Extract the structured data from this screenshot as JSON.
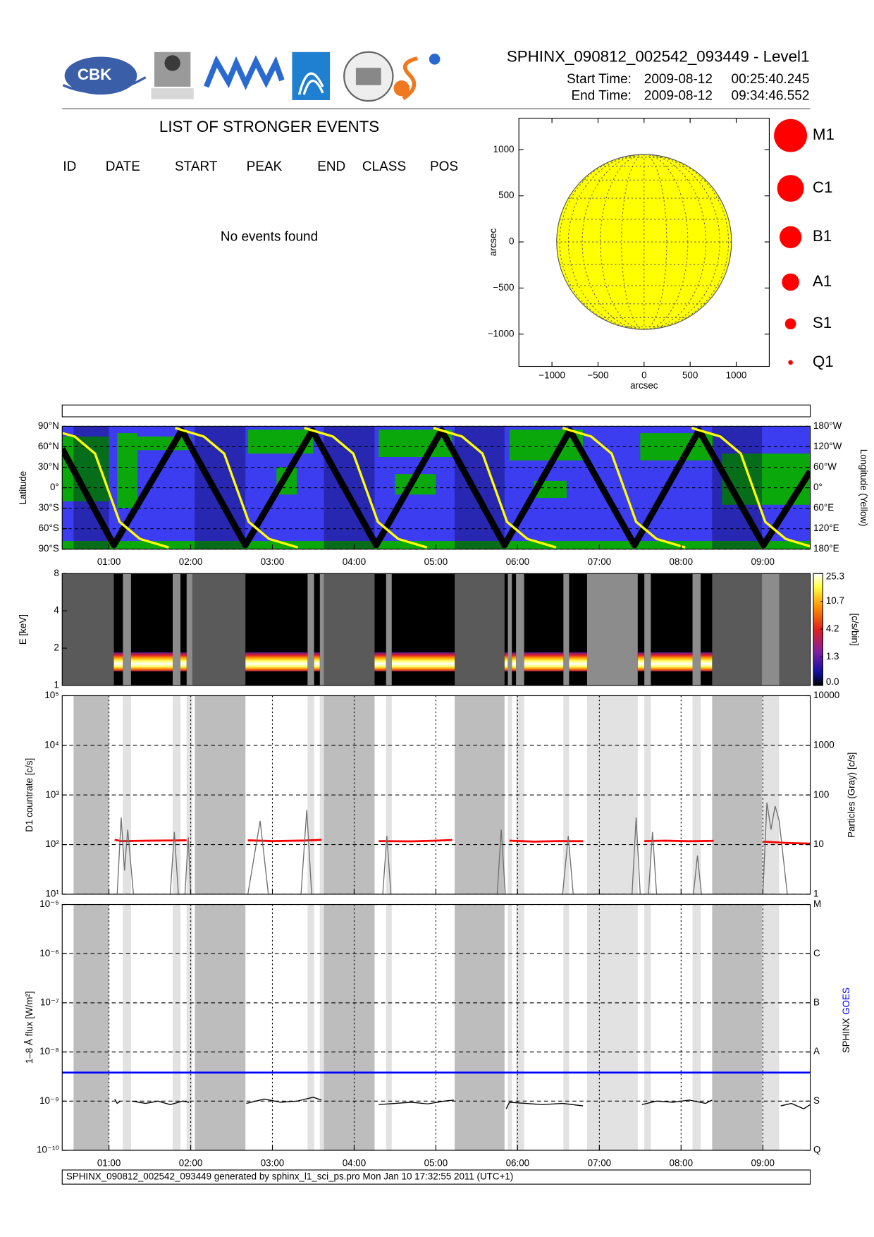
{
  "header": {
    "title": "SPHINX_090812_002542_093449 - Level1",
    "start_label": "Start Time:",
    "start_date": "2009-08-12",
    "start_time": "00:25:40.245",
    "end_label": "End Time:",
    "end_date": "2009-08-12",
    "end_time": "09:34:46.552",
    "logo_text": "CBK"
  },
  "events": {
    "title": "LIST OF STRONGER EVENTS",
    "columns": [
      "ID",
      "DATE",
      "START",
      "PEAK",
      "END",
      "CLASS",
      "POS"
    ],
    "message": "No events found"
  },
  "footer": "SPHINX_090812_002542_093449 generated by sphinx_l1_sci_ps.pro Mon Jan 10 17:32:55 2011 (UTC+1)",
  "chart_data": [
    {
      "type": "disk",
      "xlabel": "arcsec",
      "ylabel": "arcsec",
      "xlim": [
        -1359,
        1359
      ],
      "ylim": [
        -1350,
        1342
      ],
      "xticks": [
        {
          "value": -1000,
          "label": "−1000"
        },
        {
          "value": -500,
          "label": "−500"
        },
        0,
        500,
        1000
      ],
      "yticks": [
        {
          "value": -1000,
          "label": "−1000"
        },
        {
          "value": -500,
          "label": "−500"
        },
        0,
        500,
        1000
      ],
      "radius": 949,
      "color": "#ffff00",
      "legend": [
        "M1",
        "C1",
        "B1",
        "A1",
        "S1",
        "Q1"
      ],
      "legend_color": "#ff0000"
    },
    {
      "type": "orbit",
      "ylabel": "Latitude",
      "y2label": "Longitude (Yellow)",
      "xlim": [
        0.428,
        9.58
      ],
      "xticks": [
        {
          "value": 1,
          "label": "01:00"
        },
        {
          "value": 2,
          "label": "02:00"
        },
        {
          "value": 3,
          "label": "03:00"
        },
        {
          "value": 4,
          "label": "04:00"
        },
        {
          "value": 5,
          "label": "05:00"
        },
        {
          "value": 6,
          "label": "06:00"
        },
        {
          "value": 7,
          "label": "07:00"
        },
        {
          "value": 8,
          "label": "08:00"
        },
        {
          "value": 9,
          "label": "09:00"
        }
      ],
      "ylim": [
        -90,
        90
      ],
      "yticks": [
        {
          "value": 90,
          "label": "90°N"
        },
        {
          "value": 60,
          "label": "60°N"
        },
        {
          "value": 30,
          "label": "30°N"
        },
        {
          "value": 0,
          "label": "0°"
        },
        {
          "value": -30,
          "label": "30°S"
        },
        {
          "value": -60,
          "label": "60°S"
        },
        {
          "value": -90,
          "label": "90°S"
        }
      ],
      "y2lim": [
        -180,
        180
      ],
      "y2ticks": [
        {
          "value": 180,
          "label": "180°W"
        },
        {
          "value": 120,
          "label": "120°W"
        },
        {
          "value": 60,
          "label": "60°W"
        },
        {
          "value": 0,
          "label": "0°"
        },
        {
          "value": -60,
          "label": "60°E"
        },
        {
          "value": -120,
          "label": "120°E"
        },
        {
          "value": -180,
          "label": "180°E"
        }
      ],
      "background_color": "#3c3cf0",
      "region_color": "#0aa80a",
      "regions": [
        [
          0.428,
          1.0,
          -20,
          75
        ],
        [
          1.1,
          1.35,
          -30,
          80
        ],
        [
          1.35,
          2.0,
          55,
          75
        ],
        [
          2.7,
          3.5,
          50,
          85
        ],
        [
          3.05,
          3.3,
          -10,
          30
        ],
        [
          4.3,
          5.2,
          45,
          85
        ],
        [
          4.5,
          5.0,
          -10,
          20
        ],
        [
          5.9,
          6.8,
          40,
          85
        ],
        [
          6.2,
          6.6,
          -15,
          10
        ],
        [
          7.5,
          8.4,
          40,
          80
        ],
        [
          8.5,
          9.58,
          -25,
          50
        ],
        [
          0.428,
          9.58,
          -90,
          -78
        ]
      ],
      "series": [
        {
          "color": "#000000",
          "x": [
            0.428,
            1.06,
            1.89,
            2.67,
            3.49,
            4.27,
            5.07,
            5.84,
            6.64,
            7.43,
            8.22,
            9.01,
            9.58
          ],
          "values": [
            57,
            -84,
            84,
            -84,
            84,
            -84,
            84,
            -84,
            84,
            -84,
            84,
            -84,
            24
          ]
        },
        {
          "color": "#ffff00",
          "axis": "y2",
          "x": [
            0.43,
            0.58,
            0.83,
            0.98,
            1.13,
            1.38,
            1.73,
            1.77,
            1.81,
            2.16,
            2.41,
            2.56,
            2.71,
            2.96,
            3.31,
            3.35,
            3.39,
            3.74,
            3.99,
            4.14,
            4.29,
            4.54,
            4.89,
            4.93,
            4.97,
            5.32,
            5.57,
            5.72,
            5.87,
            6.12,
            6.47,
            6.51,
            6.55,
            6.9,
            7.15,
            7.3,
            7.45,
            7.7,
            8.05,
            8.09,
            8.13,
            8.48,
            8.73,
            8.88,
            9.03,
            9.28,
            9.58
          ],
          "values": [
            160,
            150,
            100,
            0,
            -100,
            -150,
            -175,
            null,
            175,
            150,
            100,
            0,
            -100,
            -150,
            -175,
            null,
            175,
            150,
            100,
            0,
            -100,
            -150,
            -175,
            null,
            175,
            150,
            100,
            0,
            -100,
            -150,
            -175,
            null,
            175,
            150,
            100,
            0,
            -100,
            -150,
            -175,
            null,
            175,
            150,
            100,
            0,
            -100,
            -150,
            -172
          ]
        }
      ]
    },
    {
      "type": "spectrogram",
      "ylabel": "E [keV]",
      "log": true,
      "xlim": [
        0.428,
        9.58
      ],
      "ylim": [
        1,
        8
      ],
      "yticks": [
        1,
        2,
        4,
        8
      ],
      "emission_band": [
        1.3,
        1.85
      ],
      "data_intervals": [
        [
          1.06,
          1.17
        ],
        [
          1.27,
          1.78
        ],
        [
          1.875,
          1.95
        ],
        [
          2.67,
          3.43
        ],
        [
          3.51,
          3.58
        ],
        [
          4.25,
          4.39
        ],
        [
          4.46,
          5.23
        ],
        [
          5.84,
          5.88
        ],
        [
          5.93,
          5.98
        ],
        [
          6.08,
          6.56
        ],
        [
          6.63,
          6.85
        ],
        [
          7.47,
          7.55
        ],
        [
          7.63,
          8.14
        ],
        [
          8.24,
          8.38
        ]
      ],
      "colorbar": {
        "label": "[c/s/bin]",
        "scale": "log1p",
        "lim": [
          0,
          25.3
        ],
        "ticks": [
          {
            "value": 0,
            "label": "0.0"
          },
          1.3,
          4.2,
          10.7,
          25.3
        ]
      }
    },
    {
      "type": "countrate",
      "ylabel": "D1 countrate [c/s]",
      "y2label": "Particles (Gray) [c/s]",
      "log": true,
      "xlim": [
        0.428,
        9.58
      ],
      "ylim": [
        10,
        100000
      ],
      "yticks": [
        {
          "value": 100000,
          "label": "10⁵"
        },
        {
          "value": 10000,
          "label": "10⁴"
        },
        {
          "value": 1000,
          "label": "10³"
        },
        {
          "value": 100,
          "label": "10²"
        },
        {
          "value": 10,
          "label": "10¹"
        }
      ],
      "y2lim": [
        1,
        10000
      ],
      "y2ticks": [
        10000,
        1000,
        100,
        10,
        1
      ],
      "dark_intervals": [
        [
          0.567,
          1.0
        ],
        [
          2.05,
          2.67
        ],
        [
          3.63,
          4.25
        ],
        [
          5.23,
          5.84
        ],
        [
          8.38,
          8.99
        ]
      ],
      "light_intervals": [
        [
          1.17,
          1.27
        ],
        [
          1.78,
          1.875
        ],
        [
          1.95,
          2.02
        ],
        [
          3.43,
          3.51
        ],
        [
          3.58,
          3.63
        ],
        [
          4.39,
          4.46
        ],
        [
          5.88,
          5.93
        ],
        [
          5.98,
          6.08
        ],
        [
          6.56,
          6.63
        ],
        [
          6.85,
          7.47
        ],
        [
          7.55,
          7.63
        ],
        [
          8.14,
          8.24
        ],
        [
          8.99,
          9.2
        ]
      ],
      "series": [
        {
          "color": "#ff0000",
          "x": [
            1.07,
            1.15,
            1.5,
            1.95,
            2.3,
            2.7,
            3.0,
            3.4,
            3.6,
            4.0,
            4.3,
            4.7,
            5.0,
            5.2,
            5.5,
            5.9,
            6.2,
            6.5,
            6.8,
            7.2,
            7.55,
            7.8,
            8.1,
            8.4,
            8.7,
            9.0,
            9.3,
            9.58
          ],
          "values": [
            125,
            118,
            120,
            122,
            null,
            122,
            118,
            121,
            125,
            null,
            118,
            116,
            120,
            124,
            null,
            120,
            115,
            118,
            117,
            null,
            118,
            120,
            117,
            119,
            null,
            115,
            108,
            105
          ]
        },
        {
          "color": "#707070",
          "axis": "y2",
          "x": [
            1.1,
            1.15,
            1.19,
            1.23,
            1.3,
            1.75,
            1.8,
            1.85,
            1.93,
            1.97,
            2.0,
            2.7,
            2.85,
            2.95,
            3.35,
            3.42,
            3.48,
            4.35,
            4.4,
            4.45,
            5.75,
            5.8,
            5.85,
            6.55,
            6.62,
            6.68,
            7.4,
            7.45,
            7.5,
            7.6,
            7.65,
            7.7,
            8.15,
            8.2,
            8.25,
            9.0,
            9.05,
            9.1,
            9.15,
            9.2,
            9.3
          ],
          "values": [
            1,
            35,
            3,
            20,
            1,
            1,
            18,
            1,
            1,
            14,
            1,
            1,
            30,
            1,
            1,
            50,
            1,
            1,
            15,
            1,
            1,
            20,
            1,
            1,
            15,
            1,
            1,
            35,
            1,
            1,
            18,
            1,
            1,
            6,
            1,
            1,
            70,
            20,
            60,
            30,
            1
          ]
        }
      ]
    },
    {
      "type": "flux",
      "ylabel": "1–8 Å flux [W/m²]",
      "log": true,
      "xlim": [
        0.428,
        9.58
      ],
      "xticks": [
        {
          "value": 1,
          "label": "01:00"
        },
        {
          "value": 2,
          "label": "02:00"
        },
        {
          "value": 3,
          "label": "03:00"
        },
        {
          "value": 4,
          "label": "04:00"
        },
        {
          "value": 5,
          "label": "05:00"
        },
        {
          "value": 6,
          "label": "06:00"
        },
        {
          "value": 7,
          "label": "07:00"
        },
        {
          "value": 8,
          "label": "08:00"
        },
        {
          "value": 9,
          "label": "09:00"
        }
      ],
      "ylim": [
        1e-10,
        1e-05
      ],
      "yticks": [
        {
          "value": 1e-05,
          "label": "10⁻⁵"
        },
        {
          "value": 1e-06,
          "label": "10⁻⁶"
        },
        {
          "value": 1e-07,
          "label": "10⁻⁷"
        },
        {
          "value": 1e-08,
          "label": "10⁻⁸"
        },
        {
          "value": 1e-09,
          "label": "10⁻⁹"
        },
        {
          "value": 1e-10,
          "label": "10⁻¹⁰"
        }
      ],
      "y2ticks": [
        {
          "value": 1e-05,
          "label": "M"
        },
        {
          "value": 1e-06,
          "label": "C"
        },
        {
          "value": 1e-07,
          "label": "B"
        },
        {
          "value": 1e-08,
          "label": "A"
        },
        {
          "value": 1e-09,
          "label": "S"
        },
        {
          "value": 1e-10,
          "label": "Q"
        }
      ],
      "series": [
        {
          "name": "SPHINX",
          "color": "#000000",
          "x": [
            1.07,
            1.1,
            1.14,
            1.2,
            1.28,
            1.45,
            1.6,
            1.75,
            1.9,
            1.98,
            2.3,
            2.68,
            2.9,
            3.1,
            3.3,
            3.5,
            3.6,
            4.0,
            4.3,
            4.5,
            4.7,
            4.9,
            5.1,
            5.22,
            5.5,
            5.86,
            5.9,
            6.1,
            6.3,
            6.55,
            6.8,
            7.2,
            7.52,
            7.7,
            7.9,
            8.1,
            8.3,
            8.38,
            8.8,
            9.22,
            9.35,
            9.5,
            9.58
          ],
          "values": [
            1.1e-09,
            9e-10,
            1e-09,
            null,
            1e-09,
            9e-10,
            1e-09,
            8.5e-10,
            1e-09,
            9.5e-10,
            null,
            9e-10,
            1.1e-09,
            9.5e-10,
            1e-09,
            1.2e-09,
            1.05e-09,
            null,
            8.5e-10,
            9e-10,
            9.5e-10,
            8.8e-10,
            1e-09,
            1.05e-09,
            null,
            7e-10,
            9.5e-10,
            9e-10,
            8.5e-10,
            9e-10,
            8e-10,
            null,
            8.5e-10,
            1e-09,
            9.5e-10,
            1.05e-09,
            9e-10,
            1.05e-09,
            null,
            8e-10,
            9e-10,
            7e-10,
            8.5e-10
          ]
        },
        {
          "name": "GOES",
          "color": "#0000ff",
          "x": [
            0.428,
            9.58
          ],
          "values": [
            3.8e-09,
            3.8e-09
          ]
        }
      ]
    }
  ]
}
